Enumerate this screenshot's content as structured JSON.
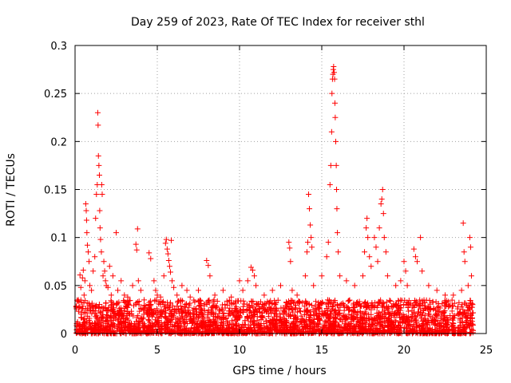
{
  "chart_data": {
    "type": "scatter",
    "title": "Day 259 of 2023, Rate Of TEC Index for receiver sthl",
    "xlabel": "GPS time / hours",
    "ylabel": "ROTI / TECUs",
    "xlim": [
      0,
      25
    ],
    "ylim": [
      0,
      0.3
    ],
    "x_ticks": [
      0,
      5,
      10,
      15,
      20,
      25
    ],
    "x_tick_labels": [
      "0",
      "5",
      "10",
      "15",
      "20",
      "25"
    ],
    "y_ticks": [
      0,
      0.05,
      0.1,
      0.15,
      0.2,
      0.25,
      0.3
    ],
    "y_tick_labels": [
      "0",
      "0.05",
      "0.1",
      "0.15",
      "0.2",
      "0.25",
      "0.3"
    ],
    "grid": true,
    "marker": "+",
    "color": "#ff0000",
    "series": [
      {
        "name": "ROTI",
        "points": [
          [
            0.15,
            0.012
          ],
          [
            0.2,
            0.035
          ],
          [
            0.3,
            0.061
          ],
          [
            0.35,
            0.048
          ],
          [
            0.45,
            0.058
          ],
          [
            0.5,
            0.066
          ],
          [
            0.55,
            0.04
          ],
          [
            0.6,
            0.055
          ],
          [
            0.65,
            0.135
          ],
          [
            0.68,
            0.128
          ],
          [
            0.7,
            0.118
          ],
          [
            0.72,
            0.105
          ],
          [
            0.75,
            0.092
          ],
          [
            0.8,
            0.085
          ],
          [
            0.85,
            0.075
          ],
          [
            0.9,
            0.05
          ],
          [
            1.0,
            0.045
          ],
          [
            1.1,
            0.065
          ],
          [
            1.2,
            0.08
          ],
          [
            1.25,
            0.12
          ],
          [
            1.3,
            0.145
          ],
          [
            1.35,
            0.155
          ],
          [
            1.38,
            0.23
          ],
          [
            1.4,
            0.217
          ],
          [
            1.42,
            0.185
          ],
          [
            1.45,
            0.175
          ],
          [
            1.48,
            0.165
          ],
          [
            1.5,
            0.128
          ],
          [
            1.52,
            0.11
          ],
          [
            1.55,
            0.098
          ],
          [
            1.6,
            0.085
          ],
          [
            1.62,
            0.155
          ],
          [
            1.65,
            0.145
          ],
          [
            1.7,
            0.06
          ],
          [
            1.75,
            0.075
          ],
          [
            1.8,
            0.065
          ],
          [
            1.85,
            0.055
          ],
          [
            1.9,
            0.05
          ],
          [
            2.0,
            0.048
          ],
          [
            2.1,
            0.07
          ],
          [
            2.2,
            0.04
          ],
          [
            2.3,
            0.06
          ],
          [
            2.5,
            0.105
          ],
          [
            2.6,
            0.045
          ],
          [
            2.8,
            0.055
          ],
          [
            3.0,
            0.04
          ],
          [
            3.2,
            0.038
          ],
          [
            3.5,
            0.05
          ],
          [
            3.7,
            0.093
          ],
          [
            3.75,
            0.087
          ],
          [
            3.8,
            0.109
          ],
          [
            3.85,
            0.055
          ],
          [
            4.0,
            0.045
          ],
          [
            4.2,
            0.035
          ],
          [
            4.5,
            0.084
          ],
          [
            4.6,
            0.078
          ],
          [
            4.8,
            0.055
          ],
          [
            4.9,
            0.045
          ],
          [
            5.0,
            0.04
          ],
          [
            5.2,
            0.038
          ],
          [
            5.4,
            0.06
          ],
          [
            5.5,
            0.094
          ],
          [
            5.55,
            0.098
          ],
          [
            5.6,
            0.088
          ],
          [
            5.65,
            0.083
          ],
          [
            5.7,
            0.076
          ],
          [
            5.75,
            0.07
          ],
          [
            5.8,
            0.064
          ],
          [
            5.85,
            0.097
          ],
          [
            5.9,
            0.055
          ],
          [
            6.0,
            0.048
          ],
          [
            6.2,
            0.04
          ],
          [
            6.5,
            0.05
          ],
          [
            6.8,
            0.045
          ],
          [
            7.0,
            0.038
          ],
          [
            7.5,
            0.045
          ],
          [
            8.0,
            0.076
          ],
          [
            8.1,
            0.071
          ],
          [
            8.2,
            0.06
          ],
          [
            8.5,
            0.04
          ],
          [
            9.0,
            0.045
          ],
          [
            9.5,
            0.038
          ],
          [
            10.0,
            0.055
          ],
          [
            10.2,
            0.045
          ],
          [
            10.5,
            0.055
          ],
          [
            10.7,
            0.069
          ],
          [
            10.8,
            0.066
          ],
          [
            10.9,
            0.06
          ],
          [
            11.0,
            0.05
          ],
          [
            11.5,
            0.04
          ],
          [
            12.0,
            0.045
          ],
          [
            12.5,
            0.05
          ],
          [
            13.0,
            0.095
          ],
          [
            13.05,
            0.089
          ],
          [
            13.1,
            0.075
          ],
          [
            13.2,
            0.045
          ],
          [
            13.5,
            0.04
          ],
          [
            14.0,
            0.06
          ],
          [
            14.1,
            0.085
          ],
          [
            14.15,
            0.095
          ],
          [
            14.2,
            0.145
          ],
          [
            14.25,
            0.13
          ],
          [
            14.3,
            0.113
          ],
          [
            14.35,
            0.1
          ],
          [
            14.4,
            0.09
          ],
          [
            14.5,
            0.05
          ],
          [
            15.0,
            0.06
          ],
          [
            15.3,
            0.08
          ],
          [
            15.4,
            0.095
          ],
          [
            15.5,
            0.155
          ],
          [
            15.55,
            0.175
          ],
          [
            15.6,
            0.21
          ],
          [
            15.62,
            0.25
          ],
          [
            15.65,
            0.265
          ],
          [
            15.68,
            0.27
          ],
          [
            15.7,
            0.275
          ],
          [
            15.72,
            0.278
          ],
          [
            15.75,
            0.272
          ],
          [
            15.78,
            0.265
          ],
          [
            15.8,
            0.24
          ],
          [
            15.82,
            0.225
          ],
          [
            15.85,
            0.2
          ],
          [
            15.88,
            0.175
          ],
          [
            15.9,
            0.15
          ],
          [
            15.92,
            0.13
          ],
          [
            15.95,
            0.105
          ],
          [
            16.0,
            0.085
          ],
          [
            16.1,
            0.06
          ],
          [
            16.5,
            0.055
          ],
          [
            17.0,
            0.05
          ],
          [
            17.5,
            0.06
          ],
          [
            17.6,
            0.085
          ],
          [
            17.7,
            0.11
          ],
          [
            17.75,
            0.12
          ],
          [
            17.8,
            0.1
          ],
          [
            17.9,
            0.08
          ],
          [
            18.0,
            0.07
          ],
          [
            18.2,
            0.1
          ],
          [
            18.3,
            0.09
          ],
          [
            18.4,
            0.075
          ],
          [
            18.5,
            0.11
          ],
          [
            18.6,
            0.135
          ],
          [
            18.65,
            0.14
          ],
          [
            18.7,
            0.15
          ],
          [
            18.75,
            0.125
          ],
          [
            18.8,
            0.1
          ],
          [
            18.9,
            0.085
          ],
          [
            19.0,
            0.06
          ],
          [
            19.5,
            0.05
          ],
          [
            19.8,
            0.055
          ],
          [
            20.0,
            0.075
          ],
          [
            20.1,
            0.065
          ],
          [
            20.2,
            0.05
          ],
          [
            20.6,
            0.088
          ],
          [
            20.7,
            0.08
          ],
          [
            20.8,
            0.075
          ],
          [
            21.0,
            0.1
          ],
          [
            21.1,
            0.065
          ],
          [
            21.5,
            0.05
          ],
          [
            22.0,
            0.045
          ],
          [
            22.5,
            0.04
          ],
          [
            23.0,
            0.04
          ],
          [
            23.5,
            0.045
          ],
          [
            23.6,
            0.115
          ],
          [
            23.65,
            0.085
          ],
          [
            23.7,
            0.075
          ],
          [
            23.9,
            0.05
          ],
          [
            24.0,
            0.1
          ],
          [
            24.05,
            0.09
          ],
          [
            24.1,
            0.06
          ]
        ],
        "noise_floor": {
          "samples_per_hour": 120,
          "x_range": [
            0.05,
            24.2
          ],
          "y_typical_range": [
            0.0,
            0.035
          ]
        }
      }
    ]
  }
}
